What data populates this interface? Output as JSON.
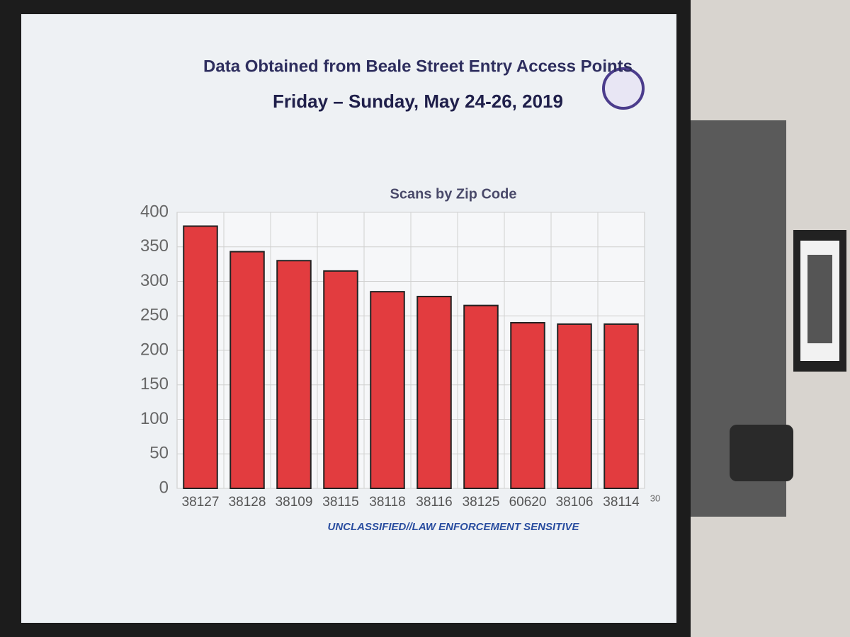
{
  "slide": {
    "title": "Data Obtained from Beale Street Entry Access Points",
    "subtitle": "Friday – Sunday, May 24-26, 2019",
    "footer": "UNCLASSIFIED//LAW ENFORCEMENT SENSITIVE",
    "page_number": "30"
  },
  "chart_data": {
    "type": "bar",
    "title": "Scans by Zip Code",
    "categories": [
      "38127",
      "38128",
      "38109",
      "38115",
      "38118",
      "38116",
      "38125",
      "60620",
      "38106",
      "38114"
    ],
    "values": [
      380,
      343,
      330,
      315,
      285,
      278,
      265,
      240,
      238,
      238
    ],
    "color": "#e23c3f",
    "ylim": [
      0,
      400
    ],
    "yticks": [
      0,
      50,
      100,
      150,
      200,
      250,
      300,
      350,
      400
    ],
    "grid": true
  }
}
